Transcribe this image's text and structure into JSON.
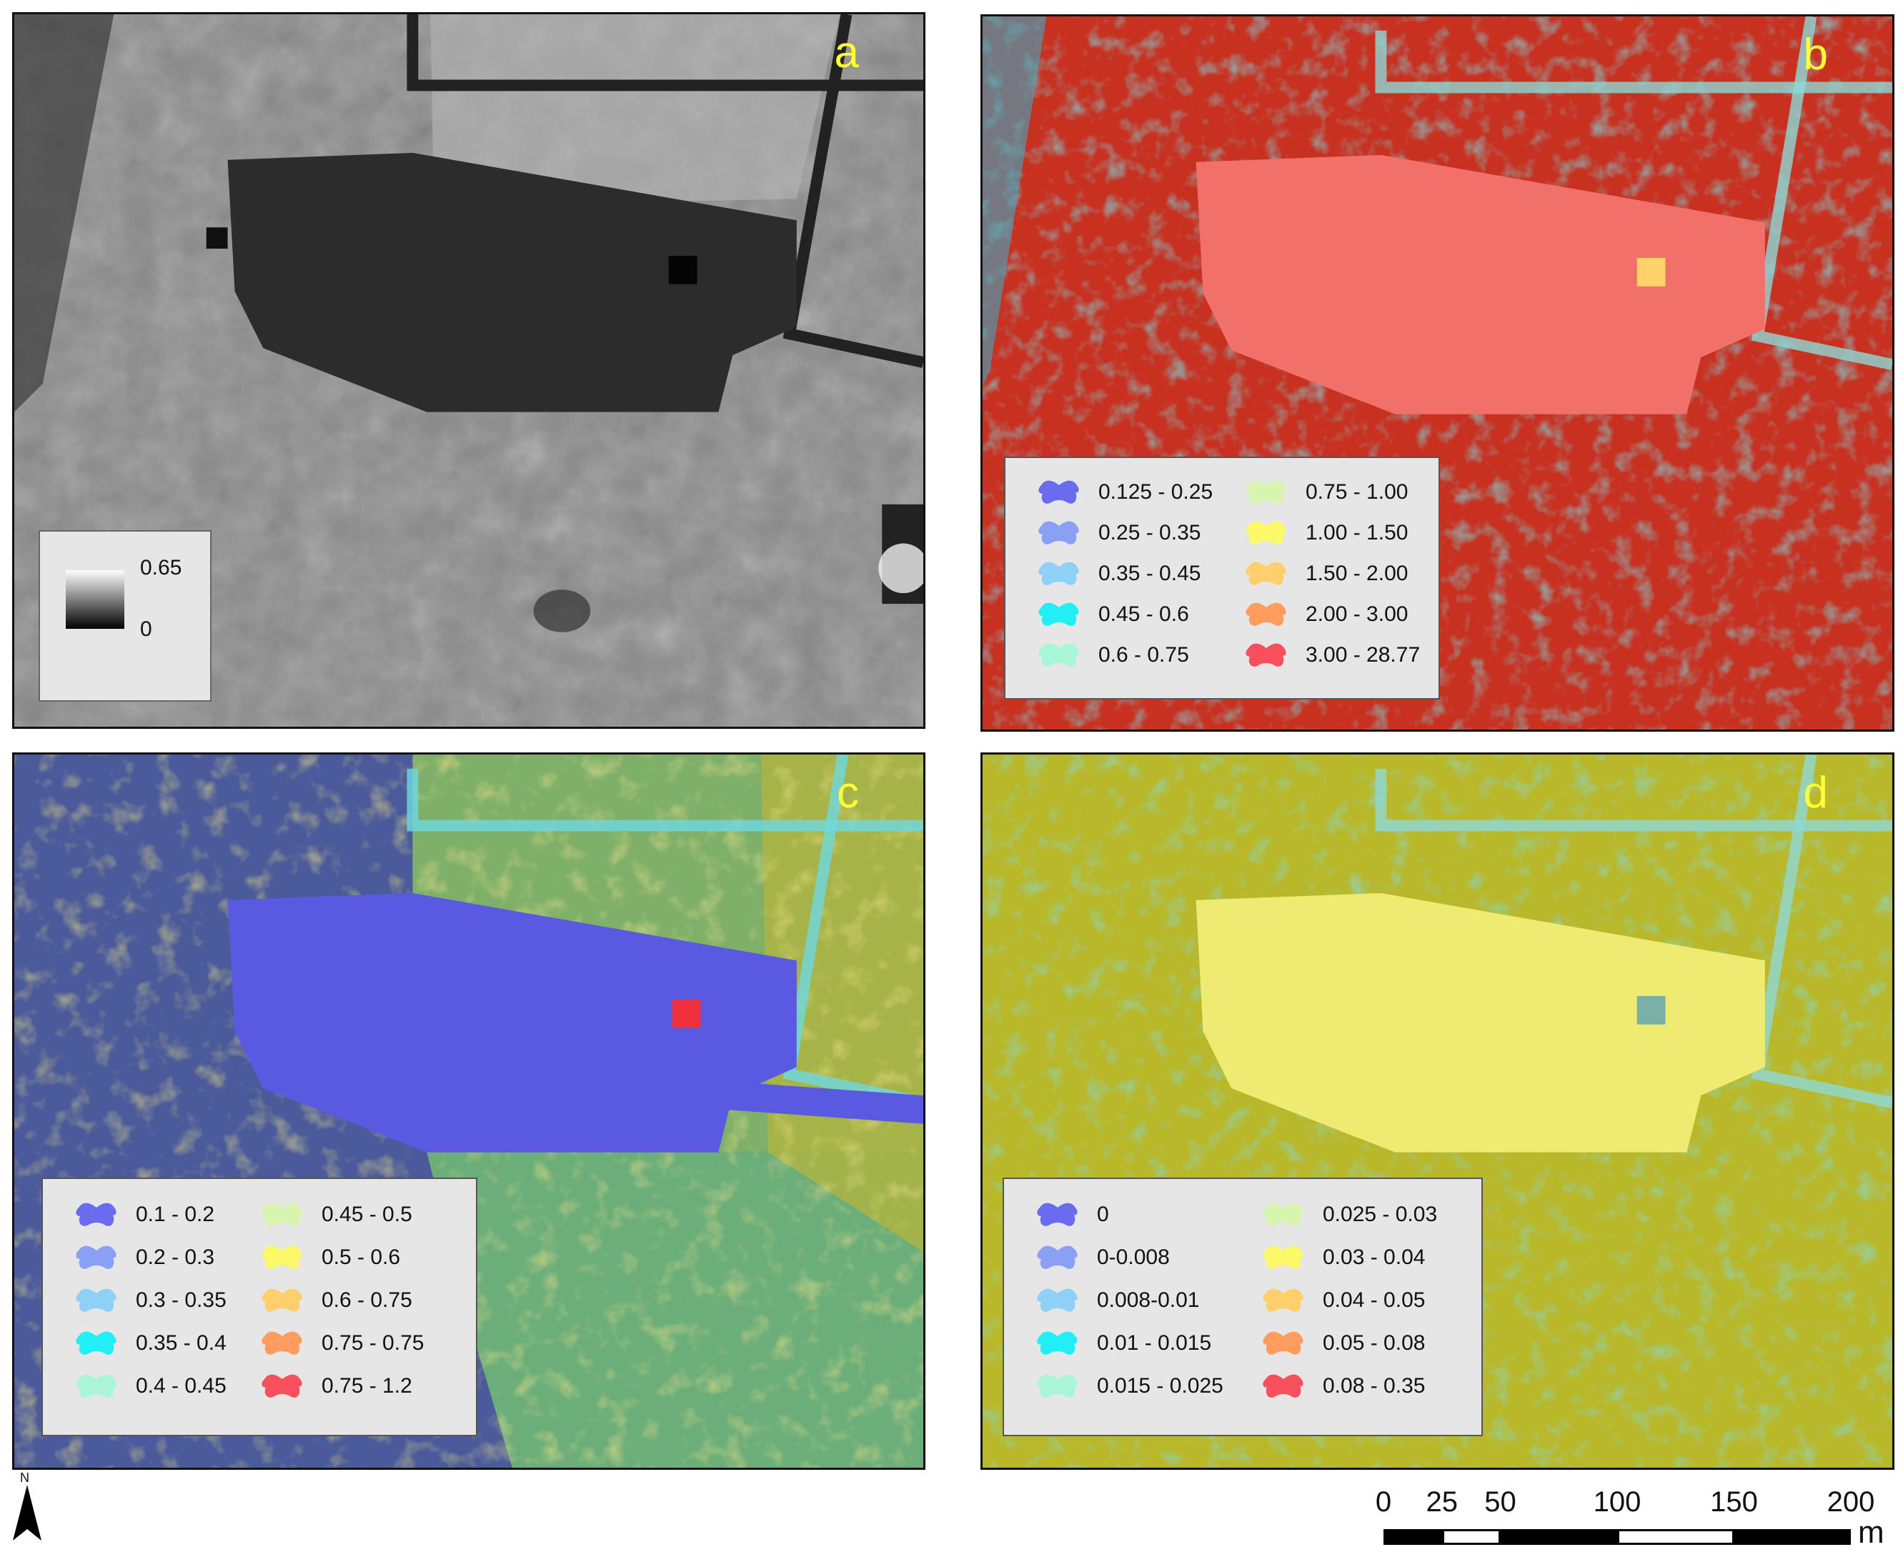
{
  "panels": {
    "a": {
      "letter": "a",
      "legend": {
        "max": "0.65",
        "min": "0"
      }
    },
    "b": {
      "letter": "b",
      "legend": [
        {
          "label": "0.125 - 0.25",
          "color": "#6a6cf0"
        },
        {
          "label": "0.25 - 0.35",
          "color": "#8aa0f5"
        },
        {
          "label": "0.35 - 0.45",
          "color": "#8fd0f7"
        },
        {
          "label": "0.45 - 0.6",
          "color": "#20f0f5"
        },
        {
          "label": "0.6 - 0.75",
          "color": "#a8f5d8"
        },
        {
          "label": "0.75 - 1.00",
          "color": "#d8f5b0"
        },
        {
          "label": "1.00 - 1.50",
          "color": "#fbf86a"
        },
        {
          "label": "1.50 - 2.00",
          "color": "#ffcf6e"
        },
        {
          "label": "2.00 - 3.00",
          "color": "#ff9c5e"
        },
        {
          "label": "3.00 - 28.77",
          "color": "#f7505c"
        }
      ]
    },
    "c": {
      "letter": "c",
      "legend": [
        {
          "label": "0.1 - 0.2",
          "color": "#6a6cf0"
        },
        {
          "label": "0.2 - 0.3",
          "color": "#8aa0f5"
        },
        {
          "label": "0.3 - 0.35",
          "color": "#8fd0f7"
        },
        {
          "label": "0.35 - 0.4",
          "color": "#20f0f5"
        },
        {
          "label": "0.4 - 0.45",
          "color": "#a8f5d8"
        },
        {
          "label": "0.45 - 0.5",
          "color": "#d8f5b0"
        },
        {
          "label": "0.5 - 0.6",
          "color": "#fbf86a"
        },
        {
          "label": "0.6 - 0.75",
          "color": "#ffcf6e"
        },
        {
          "label": "0.75 - 0.75",
          "color": "#ff9c5e"
        },
        {
          "label": "0.75 - 1.2",
          "color": "#f7505c"
        }
      ]
    },
    "d": {
      "letter": "d",
      "legend": [
        {
          "label": "0",
          "color": "#6a6cf0"
        },
        {
          "label": "0-0.008",
          "color": "#8aa0f5"
        },
        {
          "label": "0.008-0.01",
          "color": "#8fd0f7"
        },
        {
          "label": "0.01 - 0.015",
          "color": "#20f0f5"
        },
        {
          "label": "0.015 - 0.025",
          "color": "#a8f5d8"
        },
        {
          "label": "0.025 - 0.03",
          "color": "#d8f5b0"
        },
        {
          "label": "0.03 - 0.04",
          "color": "#fbf86a"
        },
        {
          "label": "0.04 - 0.05",
          "color": "#ffcf6e"
        },
        {
          "label": "0.05 - 0.08",
          "color": "#ff9c5e"
        },
        {
          "label": "0.08 - 0.35",
          "color": "#f7505c"
        }
      ]
    }
  },
  "north_arrow": {
    "label": "N"
  },
  "scale_bar": {
    "ticks": [
      "0",
      "25",
      "50",
      "100",
      "150",
      "200"
    ],
    "tick_values": [
      0,
      25,
      50,
      100,
      150,
      200
    ],
    "unit": "m"
  },
  "colors": {
    "panel_b_base": "#c83020",
    "panel_b_site": "#f2706a",
    "panel_c_base": "#4a5a9a",
    "panel_c_site": "#5a5ae0",
    "panel_c_field": "#6cae7a",
    "panel_d_base": "#b8b82a",
    "panel_d_site": "#eeea72",
    "label_color": "#ffff33"
  }
}
